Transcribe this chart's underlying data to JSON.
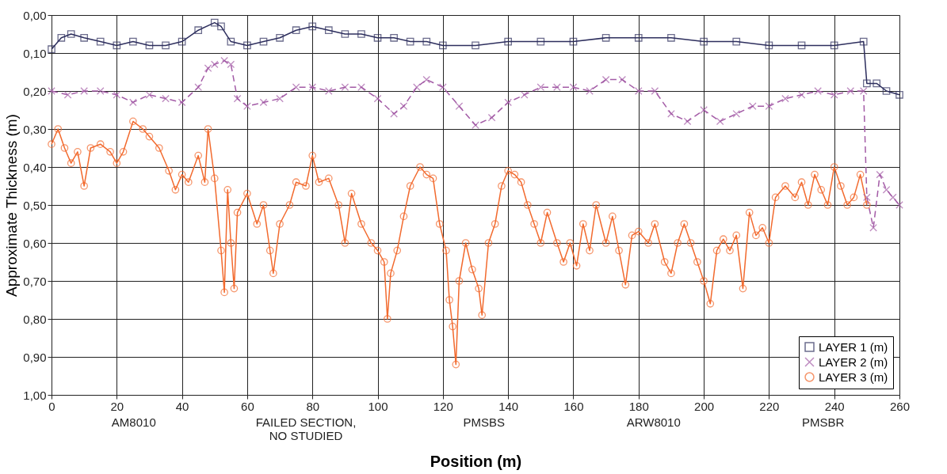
{
  "chart_data": {
    "type": "line",
    "xlabel": "Position (m)",
    "ylabel": "Approximate Thickness (m)",
    "xlim": [
      0,
      260
    ],
    "xticks": [
      0,
      20,
      40,
      60,
      80,
      100,
      120,
      140,
      160,
      180,
      200,
      220,
      240,
      260
    ],
    "ylim": [
      1.0,
      0.0
    ],
    "yticks": [
      {
        "value": 0,
        "label": "0,00"
      },
      {
        "value": 0.1,
        "label": "0,10"
      },
      {
        "value": 0.2,
        "label": "0,20"
      },
      {
        "value": 0.3,
        "label": "0,30"
      },
      {
        "value": 0.4,
        "label": "0,40"
      },
      {
        "value": 0.5,
        "label": "0,50"
      },
      {
        "value": 0.6,
        "label": "0,60"
      },
      {
        "value": 0.7,
        "label": "0,70"
      },
      {
        "value": 0.8,
        "label": "0,80"
      },
      {
        "value": 0.9,
        "label": "0,90"
      },
      {
        "value": 1.0,
        "label": "1,00"
      }
    ],
    "grid": true,
    "legend": "bottom right",
    "annotations": [
      "AM8010",
      "FAILED SECTION,\nNO STUDIED",
      "PMSBS",
      "ARW8010",
      "PMSBR"
    ],
    "series": [
      {
        "name": "LAYER 1 (m)",
        "color": "#2e2f5e",
        "marker": "square",
        "line_style": "solid",
        "x": [
          0,
          3,
          6,
          10,
          15,
          20,
          25,
          30,
          35,
          40,
          45,
          50,
          52,
          55,
          60,
          65,
          70,
          75,
          80,
          85,
          90,
          95,
          100,
          105,
          110,
          115,
          120,
          130,
          140,
          150,
          160,
          170,
          180,
          190,
          200,
          210,
          220,
          230,
          240,
          249,
          250,
          253,
          256,
          260
        ],
        "values": [
          0.09,
          0.06,
          0.05,
          0.06,
          0.07,
          0.08,
          0.07,
          0.08,
          0.08,
          0.07,
          0.04,
          0.02,
          0.03,
          0.07,
          0.08,
          0.07,
          0.06,
          0.04,
          0.03,
          0.04,
          0.05,
          0.05,
          0.06,
          0.06,
          0.07,
          0.07,
          0.08,
          0.08,
          0.07,
          0.07,
          0.07,
          0.06,
          0.06,
          0.06,
          0.07,
          0.07,
          0.08,
          0.08,
          0.08,
          0.07,
          0.18,
          0.18,
          0.2,
          0.21
        ]
      },
      {
        "name": "LAYER 2 (m)",
        "color": "#a35ba6",
        "marker": "cross",
        "line_style": "dashed",
        "x": [
          0,
          5,
          10,
          15,
          20,
          25,
          30,
          35,
          40,
          45,
          48,
          50,
          53,
          55,
          57,
          60,
          65,
          70,
          75,
          80,
          85,
          90,
          95,
          100,
          105,
          108,
          112,
          115,
          120,
          125,
          130,
          135,
          140,
          145,
          150,
          155,
          160,
          165,
          170,
          175,
          180,
          185,
          190,
          195,
          200,
          205,
          210,
          215,
          220,
          225,
          230,
          235,
          240,
          245,
          249,
          250,
          252,
          254,
          256,
          258,
          260
        ],
        "values": [
          0.2,
          0.21,
          0.2,
          0.2,
          0.21,
          0.23,
          0.21,
          0.22,
          0.23,
          0.19,
          0.14,
          0.13,
          0.12,
          0.13,
          0.22,
          0.24,
          0.23,
          0.22,
          0.19,
          0.19,
          0.2,
          0.19,
          0.19,
          0.22,
          0.26,
          0.24,
          0.19,
          0.17,
          0.19,
          0.24,
          0.29,
          0.27,
          0.23,
          0.21,
          0.19,
          0.19,
          0.19,
          0.2,
          0.17,
          0.17,
          0.2,
          0.2,
          0.26,
          0.28,
          0.25,
          0.28,
          0.26,
          0.24,
          0.24,
          0.22,
          0.21,
          0.2,
          0.21,
          0.2,
          0.2,
          0.48,
          0.56,
          0.42,
          0.46,
          0.48,
          0.5
        ]
      },
      {
        "name": "LAYER 3 (m)",
        "color": "#f26a2e",
        "marker": "circle",
        "line_style": "solid",
        "x": [
          0,
          2,
          4,
          6,
          8,
          10,
          12,
          15,
          18,
          20,
          22,
          25,
          28,
          30,
          33,
          36,
          38,
          40,
          42,
          45,
          47,
          48,
          50,
          52,
          53,
          54,
          55,
          56,
          57,
          60,
          63,
          65,
          67,
          68,
          70,
          73,
          75,
          78,
          80,
          82,
          85,
          88,
          90,
          92,
          95,
          98,
          100,
          102,
          103,
          104,
          106,
          108,
          110,
          113,
          115,
          117,
          119,
          121,
          122,
          123,
          124,
          125,
          127,
          129,
          131,
          132,
          134,
          136,
          138,
          140,
          142,
          144,
          146,
          148,
          150,
          152,
          155,
          157,
          159,
          161,
          163,
          165,
          167,
          170,
          172,
          174,
          176,
          178,
          180,
          183,
          185,
          188,
          190,
          192,
          194,
          196,
          198,
          200,
          202,
          204,
          206,
          208,
          210,
          212,
          214,
          216,
          218,
          220,
          222,
          225,
          228,
          230,
          232,
          234,
          236,
          238,
          240,
          242,
          244,
          246,
          248,
          250
        ],
        "values": [
          0.34,
          0.3,
          0.35,
          0.39,
          0.36,
          0.45,
          0.35,
          0.34,
          0.36,
          0.39,
          0.36,
          0.28,
          0.3,
          0.32,
          0.35,
          0.41,
          0.46,
          0.42,
          0.44,
          0.37,
          0.44,
          0.3,
          0.43,
          0.62,
          0.73,
          0.46,
          0.6,
          0.72,
          0.52,
          0.47,
          0.55,
          0.5,
          0.62,
          0.68,
          0.55,
          0.5,
          0.44,
          0.45,
          0.37,
          0.44,
          0.43,
          0.5,
          0.6,
          0.47,
          0.55,
          0.6,
          0.62,
          0.65,
          0.8,
          0.68,
          0.62,
          0.53,
          0.45,
          0.4,
          0.42,
          0.43,
          0.55,
          0.62,
          0.75,
          0.82,
          0.92,
          0.7,
          0.6,
          0.67,
          0.72,
          0.79,
          0.6,
          0.55,
          0.45,
          0.41,
          0.42,
          0.44,
          0.5,
          0.55,
          0.6,
          0.52,
          0.6,
          0.65,
          0.6,
          0.66,
          0.55,
          0.62,
          0.5,
          0.6,
          0.53,
          0.62,
          0.71,
          0.58,
          0.57,
          0.6,
          0.55,
          0.65,
          0.68,
          0.6,
          0.55,
          0.6,
          0.65,
          0.7,
          0.76,
          0.62,
          0.59,
          0.62,
          0.58,
          0.72,
          0.52,
          0.58,
          0.56,
          0.6,
          0.48,
          0.45,
          0.48,
          0.44,
          0.5,
          0.42,
          0.46,
          0.5,
          0.4,
          0.45,
          0.5,
          0.48,
          0.42,
          0.5
        ]
      }
    ]
  }
}
